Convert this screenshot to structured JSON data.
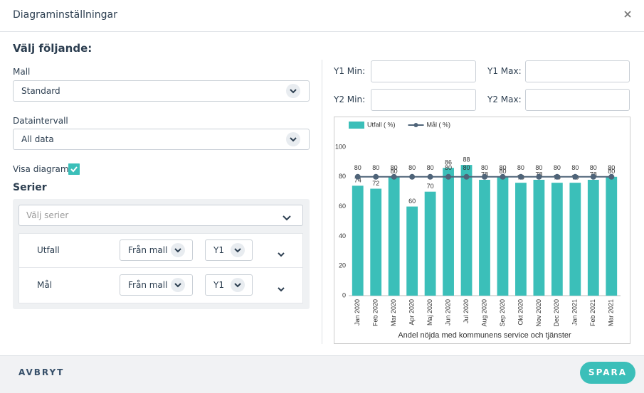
{
  "dialog": {
    "title": "Diagraminställningar"
  },
  "form": {
    "heading": "Välj följande:",
    "template_label": "Mall",
    "template_value": "Standard",
    "interval_label": "Dataintervall",
    "interval_value": "All data",
    "show_chart_label": "Visa diagram",
    "show_chart": true,
    "series_heading": "Serier",
    "series_placeholder": "Välj serier",
    "series": [
      {
        "name": "Utfall",
        "source": "Från mall",
        "axis": "Y1"
      },
      {
        "name": "Mål",
        "source": "Från mall",
        "axis": "Y1"
      }
    ]
  },
  "axis_settings": {
    "y1_min": "Y1 Min:",
    "y1_max": "Y1 Max:",
    "y2_min": "Y2 Min:",
    "y2_max": "Y2 Max:"
  },
  "footer": {
    "cancel": "AVBRYT",
    "save": "SPARA"
  },
  "chart_data": {
    "type": "bar",
    "xlabel": "Andel nöjda med kommunens service och tjänster",
    "categories": [
      "Jan 2020",
      "Feb 2020",
      "Mar 2020",
      "Apr 2020",
      "Maj 2020",
      "Jun 2020",
      "Jul 2020",
      "Aug 2020",
      "Sep 2020",
      "Okt 2020",
      "Nov 2020",
      "Dec 2020",
      "Jan 2021",
      "Feb 2021",
      "Mar 2021"
    ],
    "series": [
      {
        "name": "Utfall ( %)",
        "type": "bar",
        "color": "#3bbfb9",
        "values": [
          74,
          72,
          80,
          60,
          70,
          86,
          88,
          78,
          80,
          76,
          78,
          76,
          76,
          78,
          80
        ]
      },
      {
        "name": "Mål ( %)",
        "type": "line",
        "color": "#4f6479",
        "values": [
          80,
          80,
          80,
          80,
          80,
          80,
          80,
          80,
          80,
          80,
          80,
          80,
          80,
          80,
          80
        ]
      }
    ],
    "ylim": [
      0,
      100
    ],
    "yticks": [
      0,
      20,
      40,
      60,
      80,
      100
    ]
  }
}
